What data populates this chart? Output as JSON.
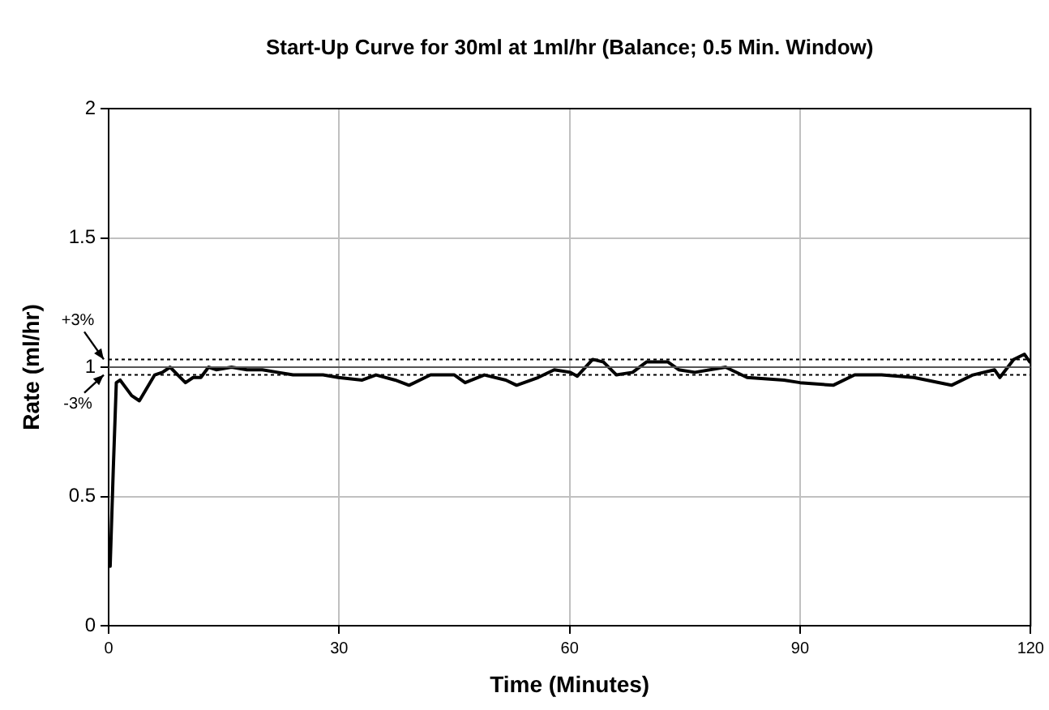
{
  "chart_data": {
    "type": "line",
    "title": "Start-Up Curve for 30ml at 1ml/hr (Balance; 0.5 Min. Window)",
    "xlabel": "Time (Minutes)",
    "ylabel": "Rate (ml/hr)",
    "xlim": [
      0,
      120
    ],
    "xticks": [
      0,
      30,
      60,
      90,
      120
    ],
    "ylim": [
      0,
      2
    ],
    "yticks": [
      0,
      0.5,
      1,
      1.5,
      2
    ],
    "grid": true,
    "legend": false,
    "marker": "none",
    "line_style": "solid",
    "ref_lines": [
      {
        "axis": "y",
        "value": 1.03,
        "color": "#000000",
        "line_style": "dotted"
      },
      {
        "axis": "y",
        "value": 1,
        "color": "#555555",
        "line_style": "solid"
      },
      {
        "axis": "y",
        "value": 0.97,
        "color": "#000000",
        "line_style": "dotted"
      }
    ],
    "annotations": [
      {
        "text": "+3%",
        "x": 0,
        "y": 1.03
      },
      {
        "text": "-3%",
        "x": 0,
        "y": 0.97
      }
    ],
    "series": [
      {
        "color": "#000000",
        "x": [
          0.2,
          0.6,
          1,
          1.5,
          2,
          3,
          4,
          5,
          6,
          7,
          8,
          9,
          10,
          11,
          12,
          13,
          14,
          16,
          18,
          20,
          22,
          24,
          26,
          27.9,
          29.9,
          33,
          34.8,
          37.3,
          39.1,
          41.9,
          45,
          46.4,
          48.9,
          51.7,
          53.1,
          55.9,
          58,
          60.1,
          61,
          63,
          64.4,
          66.1,
          68.2,
          70,
          72.8,
          74.2,
          76.3,
          80.3,
          83.1,
          87.9,
          90,
          94.3,
          97.1,
          100.6,
          104.8,
          109.7,
          112.5,
          115.3,
          116,
          117.8,
          119.2,
          119.9
        ],
        "values": [
          0.23,
          0.6,
          0.94,
          0.95,
          0.93,
          0.89,
          0.87,
          0.92,
          0.97,
          0.98,
          1.0,
          0.97,
          0.94,
          0.96,
          0.96,
          1.0,
          0.99,
          1.0,
          0.99,
          0.99,
          0.98,
          0.97,
          0.97,
          0.97,
          0.96,
          0.95,
          0.97,
          0.95,
          0.93,
          0.97,
          0.97,
          0.94,
          0.97,
          0.95,
          0.93,
          0.96,
          0.99,
          0.98,
          0.965,
          1.03,
          1.02,
          0.97,
          0.98,
          1.02,
          1.02,
          0.99,
          0.98,
          1.0,
          0.96,
          0.95,
          0.94,
          0.93,
          0.97,
          0.97,
          0.96,
          0.93,
          0.97,
          0.99,
          0.96,
          1.03,
          1.05,
          1.02
        ]
      }
    ]
  }
}
